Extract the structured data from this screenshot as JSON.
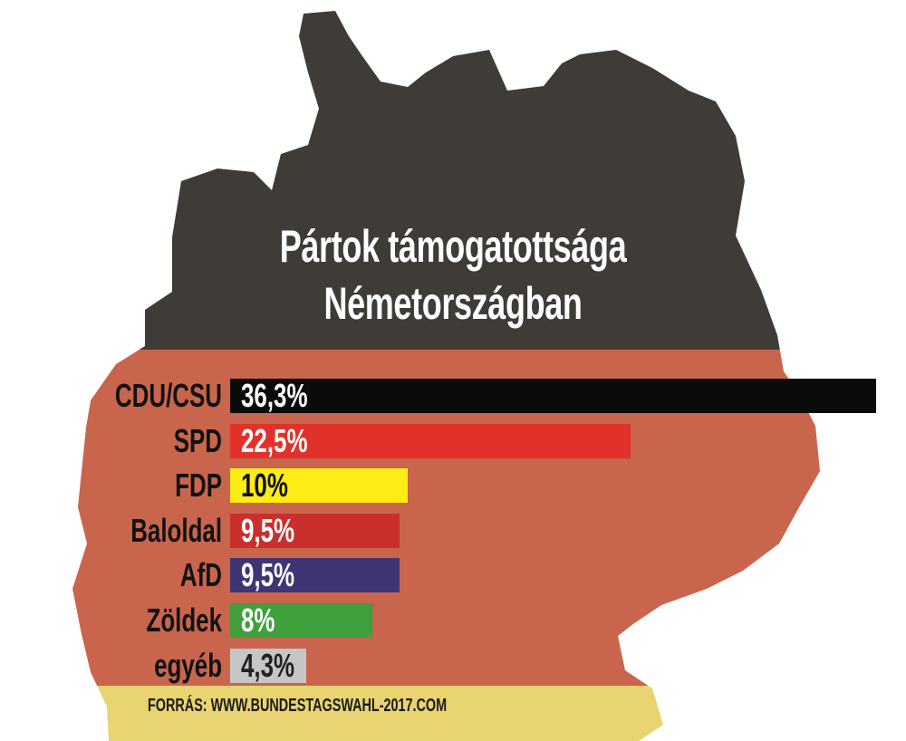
{
  "title_line1": "Pártok támogatottsága",
  "title_line2": "Németországban",
  "source": "FORRÁS: WWW.BUNDESTAGSWAHL-2017.COM",
  "colors": {
    "map_top": "#3f3b37",
    "map_middle": "#c9654c",
    "map_bottom": "#e8d470"
  },
  "chart_data": {
    "type": "bar",
    "orientation": "horizontal",
    "title": "Pártok támogatottsága Németországban",
    "categories": [
      "CDU/CSU",
      "SPD",
      "FDP",
      "Baloldal",
      "AfD",
      "Zöldek",
      "egyéb"
    ],
    "values": [
      36.3,
      22.5,
      10,
      9.5,
      9.5,
      8,
      4.3
    ],
    "labels": [
      "36,3%",
      "22,5%",
      "10%",
      "9,5%",
      "9,5%",
      "8%",
      "4,3%"
    ],
    "bar_colors": [
      "#0b0c0a",
      "#e2312b",
      "#fdec16",
      "#c9302b",
      "#3f3575",
      "#3fa03c",
      "#c6c6c6"
    ],
    "label_colors": [
      "#ffffff",
      "#ffffff",
      "#111111",
      "#ffffff",
      "#ffffff",
      "#ffffff",
      "#222222"
    ],
    "unit": "%"
  }
}
